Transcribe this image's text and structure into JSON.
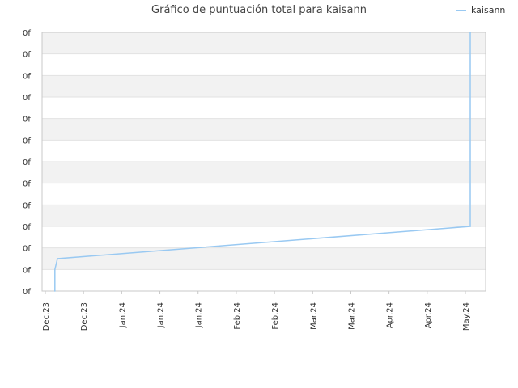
{
  "title": "Gráfico de puntuación total para kaisann",
  "colors": {
    "series": "#99c9f2",
    "band": "#f2f2f2",
    "grid": "#e2e2e2",
    "axis": "#c8c8c8"
  },
  "chart_data": {
    "type": "line",
    "title": "Gráfico de puntuación total para kaisann",
    "legend_position": "top-right",
    "grid": true,
    "y_ticks": [
      "0f",
      "0f",
      "0f",
      "0f",
      "0f",
      "0f",
      "0f",
      "0f",
      "0f",
      "0f",
      "0f",
      "0f",
      "0f"
    ],
    "x_ticks": [
      "Dec.23",
      "Dec.23",
      "Jan.24",
      "Jan.24",
      "Jan.24",
      "Feb.24",
      "Feb.24",
      "Mar.24",
      "Mar.24",
      "Apr.24",
      "Apr.24",
      "May.24"
    ],
    "xlim": [
      "2023-12-01",
      "2024-05-22"
    ],
    "ylim": [
      0,
      12
    ],
    "series": [
      {
        "name": "kaisann",
        "points": [
          {
            "x": "2023-12-06",
            "y": 0
          },
          {
            "x": "2023-12-06",
            "y": 1.0
          },
          {
            "x": "2023-12-07",
            "y": 1.5
          },
          {
            "x": "2024-05-16",
            "y": 3.0
          },
          {
            "x": "2024-05-16",
            "y": 6.0
          },
          {
            "x": "2024-05-16",
            "y": 12.0
          }
        ]
      }
    ]
  }
}
